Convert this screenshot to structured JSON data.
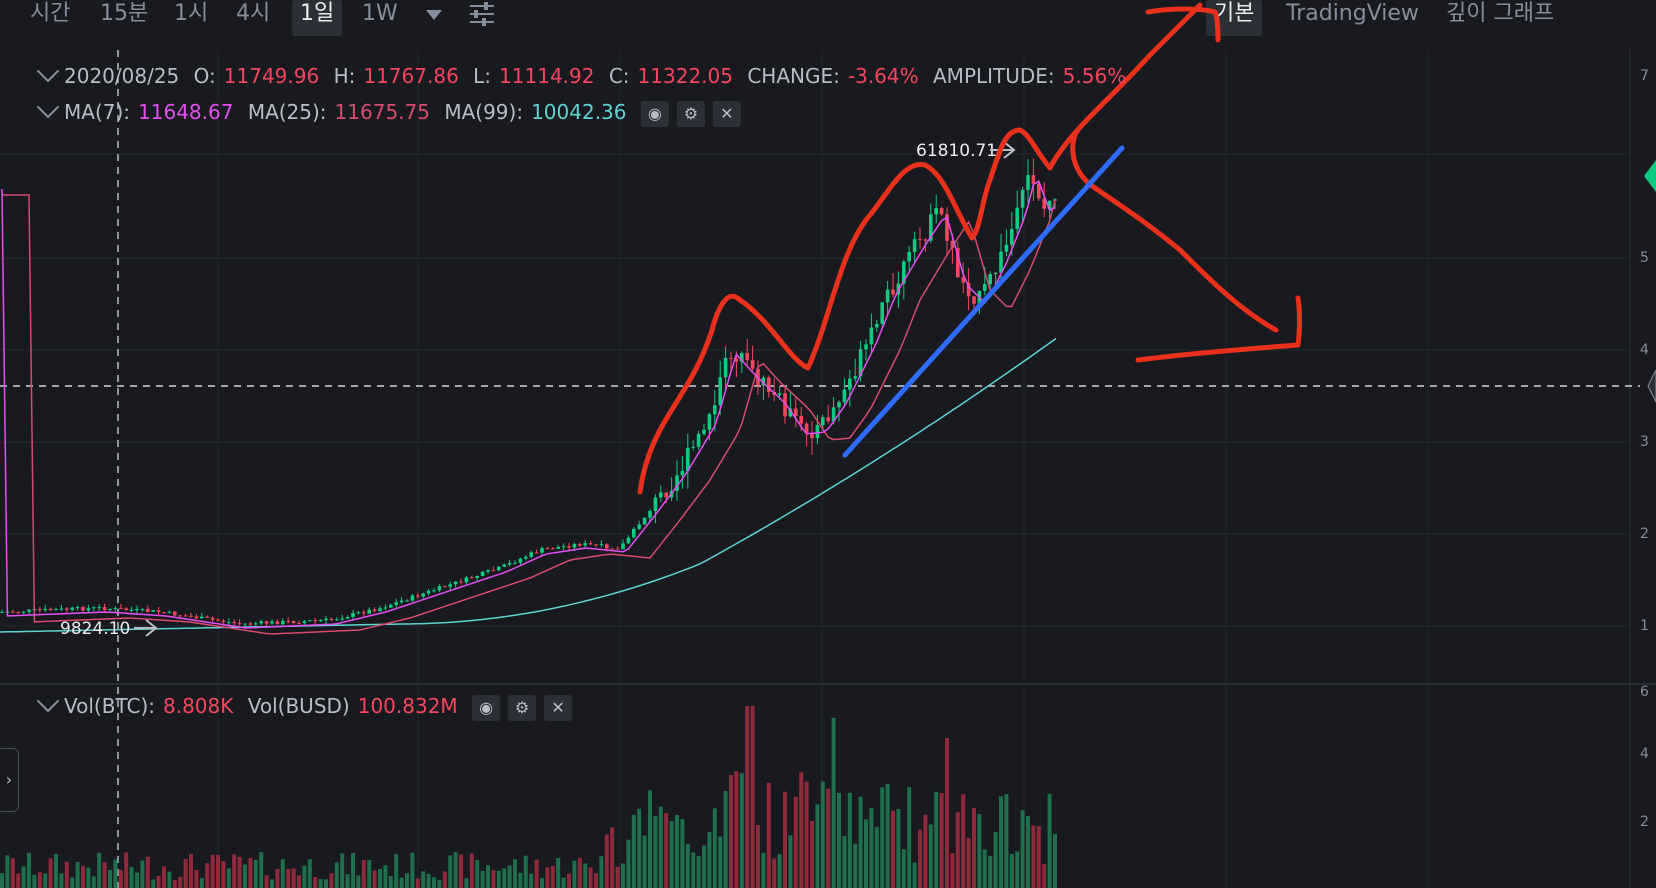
{
  "toolbar": {
    "timeframes": [
      "시간",
      "15분",
      "1시",
      "4시",
      "1일",
      "1W"
    ],
    "active_timeframe": "1일",
    "views": [
      "기본",
      "TradingView",
      "깊이 그래프"
    ],
    "active_view": "기본"
  },
  "ohlc": {
    "date": "2020/08/25",
    "o_label": "O:",
    "o": "11749.96",
    "h_label": "H:",
    "h": "11767.86",
    "l_label": "L:",
    "l": "11114.92",
    "c_label": "C:",
    "c": "11322.05",
    "change_label": "CHANGE:",
    "change": "-3.64%",
    "amplitude_label": "AMPLITUDE:",
    "amplitude": "5.56%"
  },
  "ma": {
    "ma7_label": "MA(7):",
    "ma7": "11648.67",
    "ma25_label": "MA(25):",
    "ma25": "11675.75",
    "ma99_label": "MA(99):",
    "ma99": "10042.36"
  },
  "volume": {
    "btc_label": "Vol(BTC):",
    "btc": "8.808K",
    "busd_label": "Vol(BUSD)",
    "busd": "100.832M"
  },
  "price_marks": {
    "high": "61810.71",
    "low": "9824.10"
  },
  "colors": {
    "up": "#0ecb81",
    "down": "#f6465d",
    "ma7": "#e54ff0",
    "ma25": "#d74b6e",
    "ma99": "#5fd3d1",
    "drawing_red": "#e8301c",
    "drawing_blue": "#2f6bff",
    "background": "#181a20"
  },
  "icons": [
    "settings-sliders-icon",
    "eye-icon",
    "gear-icon",
    "close-icon",
    "chevron-down-icon",
    "arrow-icon"
  ]
}
